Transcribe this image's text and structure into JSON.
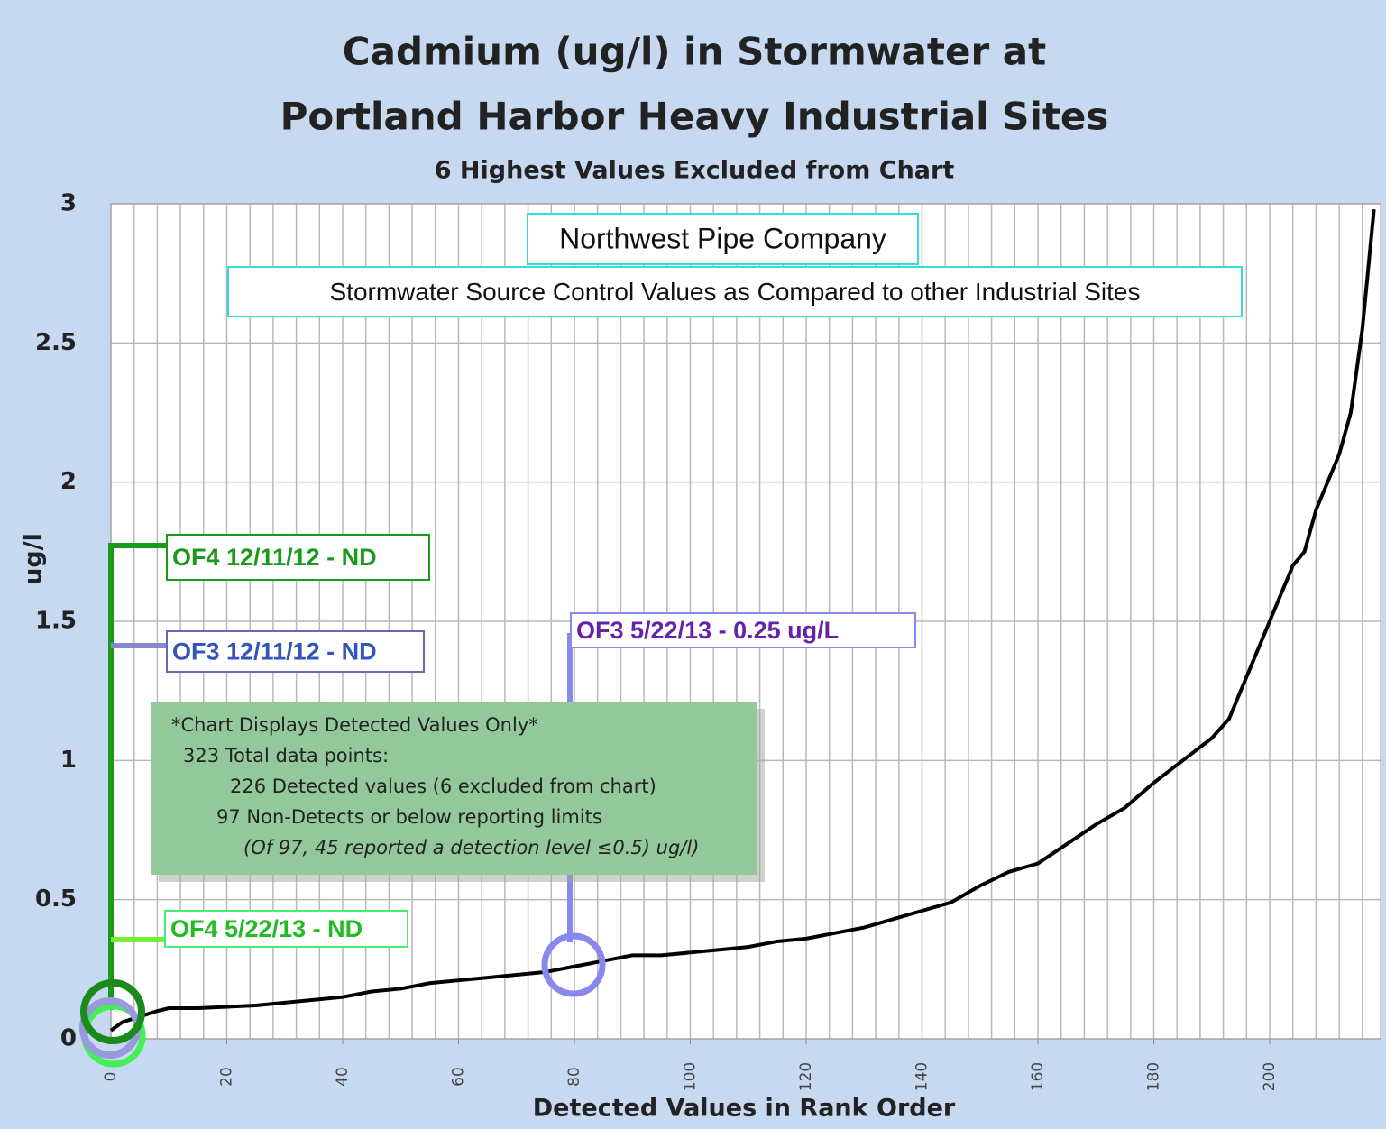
{
  "chart_data": {
    "type": "line",
    "title": "Cadmium (ug/l) in Stormwater at",
    "title_line2": "Portland Harbor Heavy Industrial Sites",
    "subtitle": "6 Highest Values Excluded from Chart",
    "xlabel": "Detected Values in Rank Order",
    "ylabel": "ug/l",
    "color": "#000000",
    "x": [
      0,
      2,
      5,
      8,
      10,
      15,
      25,
      30,
      40,
      45,
      50,
      55,
      60,
      65,
      70,
      75,
      80,
      85,
      90,
      95,
      100,
      105,
      110,
      115,
      120,
      125,
      130,
      135,
      140,
      145,
      150,
      155,
      160,
      165,
      170,
      175,
      180,
      185,
      190,
      193,
      195,
      197,
      199,
      200,
      202,
      204,
      206,
      208,
      210,
      212,
      214,
      216,
      218
    ],
    "values": [
      0.03,
      0.06,
      0.08,
      0.1,
      0.11,
      0.11,
      0.12,
      0.13,
      0.15,
      0.17,
      0.18,
      0.2,
      0.21,
      0.22,
      0.23,
      0.24,
      0.26,
      0.28,
      0.3,
      0.3,
      0.31,
      0.32,
      0.33,
      0.35,
      0.36,
      0.38,
      0.4,
      0.43,
      0.46,
      0.49,
      0.55,
      0.6,
      0.63,
      0.7,
      0.77,
      0.83,
      0.92,
      1.0,
      1.08,
      1.15,
      1.25,
      1.35,
      1.45,
      1.5,
      1.6,
      1.7,
      1.75,
      1.9,
      2.0,
      2.1,
      2.25,
      2.55,
      2.98
    ],
    "xlim": [
      0,
      219
    ],
    "ylim": [
      0,
      3
    ],
    "xticks": [
      0,
      20,
      40,
      60,
      80,
      100,
      120,
      140,
      160,
      180,
      200
    ],
    "yticks": [
      0,
      0.5,
      1,
      1.5,
      2,
      2.5,
      3
    ],
    "grid": true,
    "xgrid_interval": 4,
    "boxes": [
      "Northwest Pipe Company",
      "Stormwater Source Control Values as Compared to other Industrial Sites"
    ],
    "annotations": [
      "OF4 12/11/12 - ND",
      "OF3 12/11/12 - ND",
      "OF4 5/22/13 - ND",
      "OF3 5/22/13 - 0.25 ug/L"
    ],
    "note_lines": [
      "*Chart Displays Detected Values Only*",
      "323 Total data points:",
      "226 Detected values (6 excluded from chart)",
      "97 Non-Detects or below reporting limits",
      "(Of 97, 45 reported a detection level ≤0.5) ug/l)"
    ]
  }
}
